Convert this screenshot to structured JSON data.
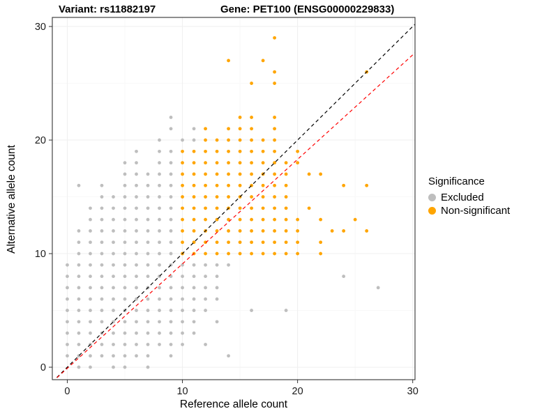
{
  "chart_data": {
    "type": "scatter",
    "title_variant": "Variant: rs11882197",
    "title_gene": "Gene: PET100 (ENSG00000229833)",
    "xlabel": "Reference allele count",
    "ylabel": "Alternative allele count",
    "x_ticks": [
      0,
      10,
      20,
      30
    ],
    "y_ticks": [
      0,
      10,
      20,
      30
    ],
    "x_minor_ticks": [
      5,
      15,
      25
    ],
    "y_minor_ticks": [
      5,
      15,
      25
    ],
    "xlim": [
      -1.3,
      30.2
    ],
    "ylim": [
      -1.1,
      30.8
    ],
    "grid": true,
    "legend": {
      "title": "Significance",
      "position": "right"
    },
    "series": [
      {
        "name": "Excluded",
        "color": "#BEBEBE",
        "points": [
          [
            1,
            0
          ],
          [
            2,
            0
          ],
          [
            4,
            0
          ],
          [
            5,
            0
          ],
          [
            7,
            0
          ],
          [
            0,
            1
          ],
          [
            1,
            1
          ],
          [
            2,
            1
          ],
          [
            3,
            1
          ],
          [
            4,
            1
          ],
          [
            5,
            1
          ],
          [
            6,
            1
          ],
          [
            7,
            1
          ],
          [
            9,
            1
          ],
          [
            14,
            1
          ],
          [
            0,
            2
          ],
          [
            1,
            2
          ],
          [
            2,
            2
          ],
          [
            3,
            2
          ],
          [
            4,
            2
          ],
          [
            5,
            2
          ],
          [
            6,
            2
          ],
          [
            7,
            2
          ],
          [
            8,
            2
          ],
          [
            9,
            2
          ],
          [
            10,
            2
          ],
          [
            12,
            2
          ],
          [
            0,
            3
          ],
          [
            1,
            3
          ],
          [
            2,
            3
          ],
          [
            3,
            3
          ],
          [
            4,
            3
          ],
          [
            5,
            3
          ],
          [
            6,
            3
          ],
          [
            7,
            3
          ],
          [
            8,
            3
          ],
          [
            9,
            3
          ],
          [
            10,
            3
          ],
          [
            11,
            3
          ],
          [
            0,
            4
          ],
          [
            1,
            4
          ],
          [
            2,
            4
          ],
          [
            3,
            4
          ],
          [
            4,
            4
          ],
          [
            5,
            4
          ],
          [
            6,
            4
          ],
          [
            7,
            4
          ],
          [
            8,
            4
          ],
          [
            9,
            4
          ],
          [
            10,
            4
          ],
          [
            11,
            4
          ],
          [
            13,
            4
          ],
          [
            0,
            5
          ],
          [
            1,
            5
          ],
          [
            2,
            5
          ],
          [
            3,
            5
          ],
          [
            4,
            5
          ],
          [
            5,
            5
          ],
          [
            6,
            5
          ],
          [
            7,
            5
          ],
          [
            8,
            5
          ],
          [
            9,
            5
          ],
          [
            10,
            5
          ],
          [
            11,
            5
          ],
          [
            12,
            5
          ],
          [
            16,
            5
          ],
          [
            19,
            5
          ],
          [
            0,
            6
          ],
          [
            1,
            6
          ],
          [
            2,
            6
          ],
          [
            3,
            6
          ],
          [
            4,
            6
          ],
          [
            5,
            6
          ],
          [
            6,
            6
          ],
          [
            7,
            6
          ],
          [
            8,
            6
          ],
          [
            9,
            6
          ],
          [
            10,
            6
          ],
          [
            11,
            6
          ],
          [
            12,
            6
          ],
          [
            13,
            6
          ],
          [
            0,
            7
          ],
          [
            1,
            7
          ],
          [
            2,
            7
          ],
          [
            3,
            7
          ],
          [
            4,
            7
          ],
          [
            5,
            7
          ],
          [
            6,
            7
          ],
          [
            7,
            7
          ],
          [
            8,
            7
          ],
          [
            9,
            7
          ],
          [
            10,
            7
          ],
          [
            11,
            7
          ],
          [
            12,
            7
          ],
          [
            13,
            7
          ],
          [
            27,
            7
          ],
          [
            0,
            8
          ],
          [
            1,
            8
          ],
          [
            2,
            8
          ],
          [
            3,
            8
          ],
          [
            4,
            8
          ],
          [
            5,
            8
          ],
          [
            6,
            8
          ],
          [
            7,
            8
          ],
          [
            8,
            8
          ],
          [
            9,
            8
          ],
          [
            10,
            8
          ],
          [
            11,
            8
          ],
          [
            12,
            8
          ],
          [
            13,
            8
          ],
          [
            24,
            8
          ],
          [
            0,
            9
          ],
          [
            1,
            9
          ],
          [
            2,
            9
          ],
          [
            3,
            9
          ],
          [
            4,
            9
          ],
          [
            5,
            9
          ],
          [
            6,
            9
          ],
          [
            7,
            9
          ],
          [
            8,
            9
          ],
          [
            9,
            9
          ],
          [
            10,
            9
          ],
          [
            11,
            9
          ],
          [
            12,
            9
          ],
          [
            13,
            9
          ],
          [
            14,
            9
          ],
          [
            1,
            10
          ],
          [
            2,
            10
          ],
          [
            3,
            10
          ],
          [
            4,
            10
          ],
          [
            5,
            10
          ],
          [
            6,
            10
          ],
          [
            7,
            10
          ],
          [
            8,
            10
          ],
          [
            9,
            10
          ],
          [
            1,
            11
          ],
          [
            2,
            11
          ],
          [
            3,
            11
          ],
          [
            4,
            11
          ],
          [
            5,
            11
          ],
          [
            6,
            11
          ],
          [
            7,
            11
          ],
          [
            8,
            11
          ],
          [
            9,
            11
          ],
          [
            1,
            12
          ],
          [
            2,
            12
          ],
          [
            3,
            12
          ],
          [
            4,
            12
          ],
          [
            5,
            12
          ],
          [
            6,
            12
          ],
          [
            7,
            12
          ],
          [
            8,
            12
          ],
          [
            9,
            12
          ],
          [
            2,
            13
          ],
          [
            3,
            13
          ],
          [
            4,
            13
          ],
          [
            5,
            13
          ],
          [
            6,
            13
          ],
          [
            7,
            13
          ],
          [
            8,
            13
          ],
          [
            9,
            13
          ],
          [
            2,
            14
          ],
          [
            3,
            14
          ],
          [
            4,
            14
          ],
          [
            5,
            14
          ],
          [
            6,
            14
          ],
          [
            7,
            14
          ],
          [
            8,
            14
          ],
          [
            9,
            14
          ],
          [
            3,
            15
          ],
          [
            4,
            15
          ],
          [
            5,
            15
          ],
          [
            6,
            15
          ],
          [
            7,
            15
          ],
          [
            8,
            15
          ],
          [
            9,
            15
          ],
          [
            1,
            16
          ],
          [
            3,
            16
          ],
          [
            5,
            16
          ],
          [
            6,
            16
          ],
          [
            7,
            16
          ],
          [
            8,
            16
          ],
          [
            9,
            16
          ],
          [
            5,
            17
          ],
          [
            6,
            17
          ],
          [
            7,
            17
          ],
          [
            8,
            17
          ],
          [
            9,
            17
          ],
          [
            5,
            18
          ],
          [
            6,
            18
          ],
          [
            8,
            18
          ],
          [
            9,
            18
          ],
          [
            6,
            19
          ],
          [
            8,
            19
          ],
          [
            9,
            19
          ],
          [
            8,
            20
          ],
          [
            10,
            20
          ],
          [
            11,
            20
          ],
          [
            9,
            21
          ],
          [
            11,
            21
          ],
          [
            9,
            22
          ]
        ]
      },
      {
        "name": "Non-significant",
        "color": "#FFA500",
        "points": [
          [
            10,
            10
          ],
          [
            11,
            10
          ],
          [
            12,
            10
          ],
          [
            13,
            10
          ],
          [
            14,
            10
          ],
          [
            15,
            10
          ],
          [
            16,
            10
          ],
          [
            17,
            10
          ],
          [
            18,
            10
          ],
          [
            19,
            10
          ],
          [
            20,
            10
          ],
          [
            22,
            10
          ],
          [
            10,
            11
          ],
          [
            11,
            11
          ],
          [
            12,
            11
          ],
          [
            13,
            11
          ],
          [
            14,
            11
          ],
          [
            15,
            11
          ],
          [
            16,
            11
          ],
          [
            17,
            11
          ],
          [
            18,
            11
          ],
          [
            19,
            11
          ],
          [
            20,
            11
          ],
          [
            22,
            11
          ],
          [
            10,
            12
          ],
          [
            11,
            12
          ],
          [
            12,
            12
          ],
          [
            13,
            12
          ],
          [
            14,
            12
          ],
          [
            15,
            12
          ],
          [
            16,
            12
          ],
          [
            17,
            12
          ],
          [
            18,
            12
          ],
          [
            19,
            12
          ],
          [
            20,
            12
          ],
          [
            23,
            12
          ],
          [
            24,
            12
          ],
          [
            26,
            12
          ],
          [
            10,
            13
          ],
          [
            11,
            13
          ],
          [
            12,
            13
          ],
          [
            13,
            13
          ],
          [
            14,
            13
          ],
          [
            15,
            13
          ],
          [
            16,
            13
          ],
          [
            17,
            13
          ],
          [
            18,
            13
          ],
          [
            19,
            13
          ],
          [
            20,
            13
          ],
          [
            22,
            13
          ],
          [
            25,
            13
          ],
          [
            10,
            14
          ],
          [
            11,
            14
          ],
          [
            12,
            14
          ],
          [
            13,
            14
          ],
          [
            14,
            14
          ],
          [
            15,
            14
          ],
          [
            16,
            14
          ],
          [
            17,
            14
          ],
          [
            18,
            14
          ],
          [
            19,
            14
          ],
          [
            21,
            14
          ],
          [
            10,
            15
          ],
          [
            11,
            15
          ],
          [
            12,
            15
          ],
          [
            13,
            15
          ],
          [
            14,
            15
          ],
          [
            15,
            15
          ],
          [
            16,
            15
          ],
          [
            17,
            15
          ],
          [
            18,
            15
          ],
          [
            19,
            15
          ],
          [
            10,
            16
          ],
          [
            11,
            16
          ],
          [
            12,
            16
          ],
          [
            13,
            16
          ],
          [
            14,
            16
          ],
          [
            15,
            16
          ],
          [
            16,
            16
          ],
          [
            17,
            16
          ],
          [
            18,
            16
          ],
          [
            19,
            16
          ],
          [
            24,
            16
          ],
          [
            26,
            16
          ],
          [
            10,
            17
          ],
          [
            11,
            17
          ],
          [
            12,
            17
          ],
          [
            13,
            17
          ],
          [
            14,
            17
          ],
          [
            15,
            17
          ],
          [
            16,
            17
          ],
          [
            17,
            17
          ],
          [
            18,
            17
          ],
          [
            19,
            17
          ],
          [
            21,
            17
          ],
          [
            22,
            17
          ],
          [
            10,
            18
          ],
          [
            11,
            18
          ],
          [
            12,
            18
          ],
          [
            13,
            18
          ],
          [
            14,
            18
          ],
          [
            15,
            18
          ],
          [
            16,
            18
          ],
          [
            17,
            18
          ],
          [
            18,
            18
          ],
          [
            19,
            18
          ],
          [
            20,
            18
          ],
          [
            10,
            19
          ],
          [
            11,
            19
          ],
          [
            12,
            19
          ],
          [
            13,
            19
          ],
          [
            14,
            19
          ],
          [
            15,
            19
          ],
          [
            16,
            19
          ],
          [
            17,
            19
          ],
          [
            18,
            19
          ],
          [
            20,
            19
          ],
          [
            12,
            20
          ],
          [
            13,
            20
          ],
          [
            14,
            20
          ],
          [
            15,
            20
          ],
          [
            16,
            20
          ],
          [
            17,
            20
          ],
          [
            18,
            20
          ],
          [
            12,
            21
          ],
          [
            14,
            21
          ],
          [
            15,
            21
          ],
          [
            16,
            21
          ],
          [
            18,
            21
          ],
          [
            15,
            22
          ],
          [
            16,
            22
          ],
          [
            18,
            22
          ],
          [
            16,
            25
          ],
          [
            18,
            25
          ],
          [
            18,
            26
          ],
          [
            26,
            26
          ],
          [
            14,
            27
          ],
          [
            17,
            27
          ],
          [
            18,
            29
          ]
        ]
      }
    ],
    "lines": [
      {
        "name": "identity-line",
        "slope": 1,
        "intercept": 0,
        "color": "#000000",
        "style": "dashed"
      },
      {
        "name": "fit-line",
        "slope": 0.92,
        "intercept": -0.1,
        "color": "#FF0000",
        "style": "dashed"
      }
    ]
  }
}
